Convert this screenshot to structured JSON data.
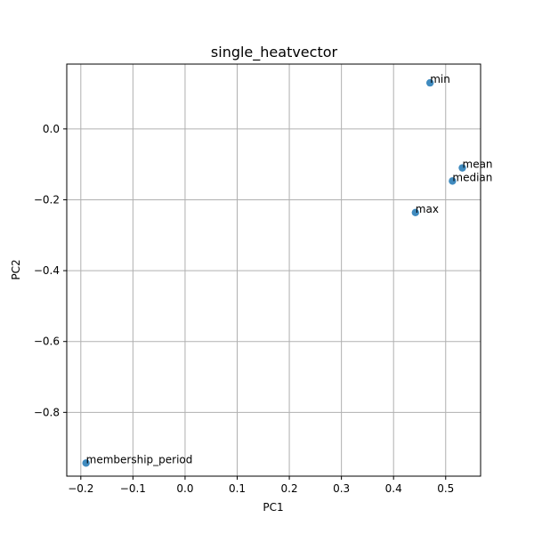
{
  "chart_data": {
    "type": "scatter",
    "title": "single_heatvector",
    "xlabel": "PC1",
    "ylabel": "PC2",
    "xlim": [
      -0.227,
      0.567
    ],
    "ylim": [
      -0.98,
      0.183
    ],
    "xticks": [
      -0.2,
      -0.1,
      0.0,
      0.1,
      0.2,
      0.3,
      0.4,
      0.5
    ],
    "xtick_labels": [
      "−0.2",
      "−0.1",
      "0.0",
      "0.1",
      "0.2",
      "0.3",
      "0.4",
      "0.5"
    ],
    "yticks": [
      0.0,
      -0.2,
      -0.4,
      -0.6,
      -0.8
    ],
    "ytick_labels": [
      "0.0",
      "−0.2",
      "−0.4",
      "−0.6",
      "−0.8"
    ],
    "grid": true,
    "color": "#1f77b4",
    "points": [
      {
        "label": "min",
        "x": 0.47,
        "y": 0.13
      },
      {
        "label": "mean",
        "x": 0.532,
        "y": -0.11
      },
      {
        "label": "median",
        "x": 0.513,
        "y": -0.147
      },
      {
        "label": "max",
        "x": 0.442,
        "y": -0.236
      },
      {
        "label": "membership_period",
        "x": -0.19,
        "y": -0.943
      }
    ]
  }
}
